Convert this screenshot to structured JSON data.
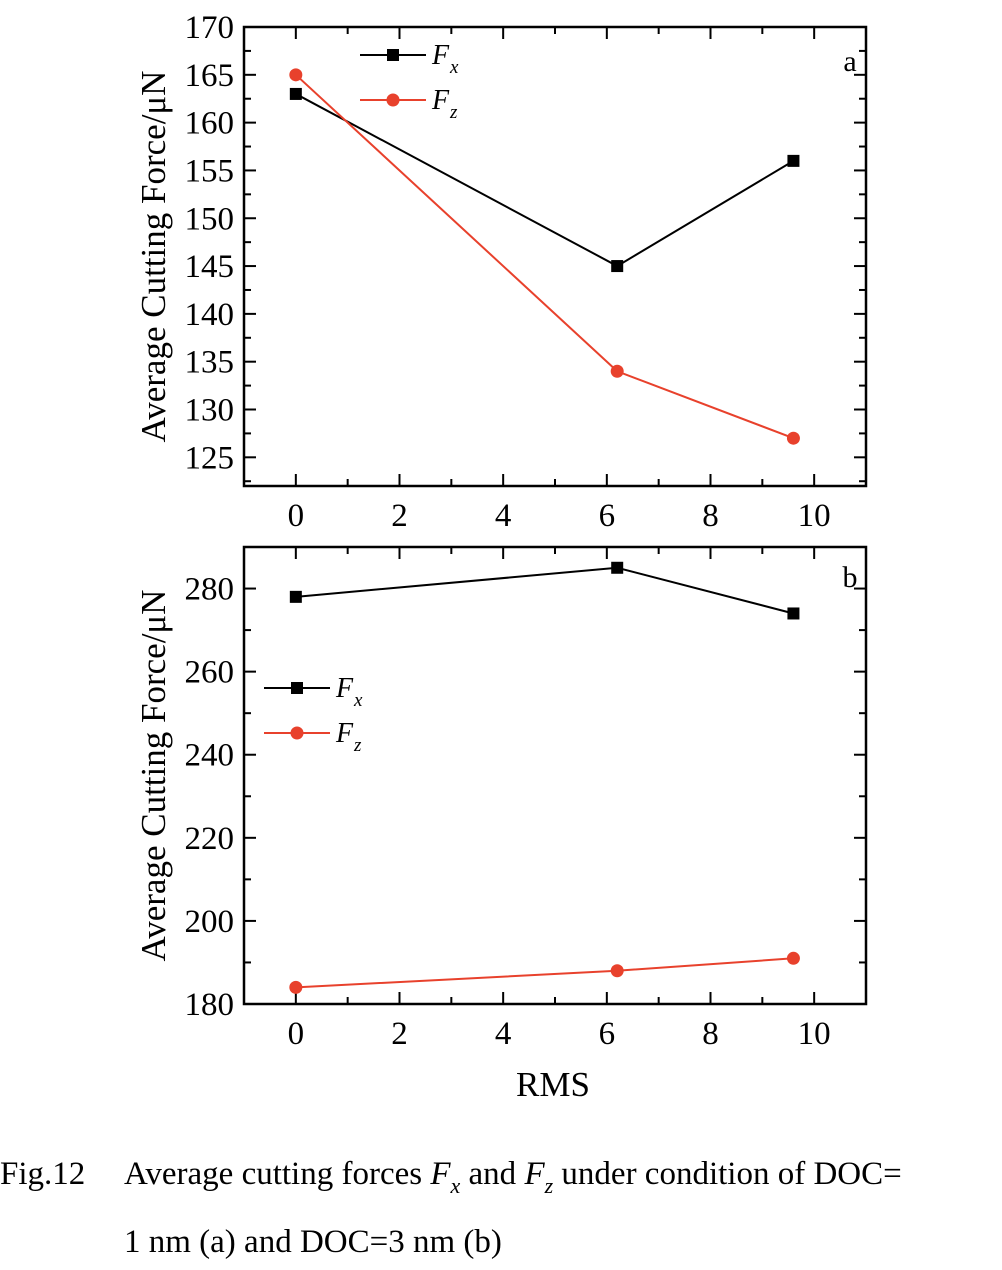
{
  "chart_data": [
    {
      "type": "line",
      "panel_label": "a",
      "xlabel": "",
      "ylabel": "Average Cutting Force/μN",
      "xlim": [
        -1,
        11
      ],
      "ylim": [
        122,
        170
      ],
      "xticks": [
        0,
        2,
        4,
        6,
        8,
        10
      ],
      "yticks": [
        125,
        130,
        135,
        140,
        145,
        150,
        155,
        160,
        165,
        170
      ],
      "legend_position": "top-left",
      "grid": false,
      "series": [
        {
          "name": "F",
          "subscript": "x",
          "color": "#000000",
          "marker": "square",
          "x": [
            0,
            6.2,
            9.6
          ],
          "y": [
            163,
            145,
            156
          ]
        },
        {
          "name": "F",
          "subscript": "z",
          "color": "#e8412c",
          "marker": "circle",
          "x": [
            0,
            6.2,
            9.6
          ],
          "y": [
            165,
            134,
            127
          ]
        }
      ]
    },
    {
      "type": "line",
      "panel_label": "b",
      "xlabel": "RMS",
      "ylabel": "Average Cutting Force/μN",
      "xlim": [
        -1,
        11
      ],
      "ylim": [
        180,
        290
      ],
      "xticks": [
        0,
        2,
        4,
        6,
        8,
        10
      ],
      "yticks": [
        180,
        200,
        220,
        240,
        260,
        280
      ],
      "legend_position": "center-left",
      "grid": false,
      "series": [
        {
          "name": "F",
          "subscript": "x",
          "color": "#000000",
          "marker": "square",
          "x": [
            0,
            6.2,
            9.6
          ],
          "y": [
            278,
            285,
            274
          ]
        },
        {
          "name": "F",
          "subscript": "z",
          "color": "#e8412c",
          "marker": "circle",
          "x": [
            0,
            6.2,
            9.6
          ],
          "y": [
            184,
            188,
            191
          ]
        }
      ]
    }
  ],
  "caption": {
    "number": "Fig.12",
    "line1_text": "Average cutting forces",
    "var1": "F",
    "var1_sub": "x",
    "conj": "and",
    "var2": "F",
    "var2_sub": "z",
    "line1_rest": "under condition of DOC=",
    "line2": "1 nm (a) and DOC=3 nm (b)"
  }
}
